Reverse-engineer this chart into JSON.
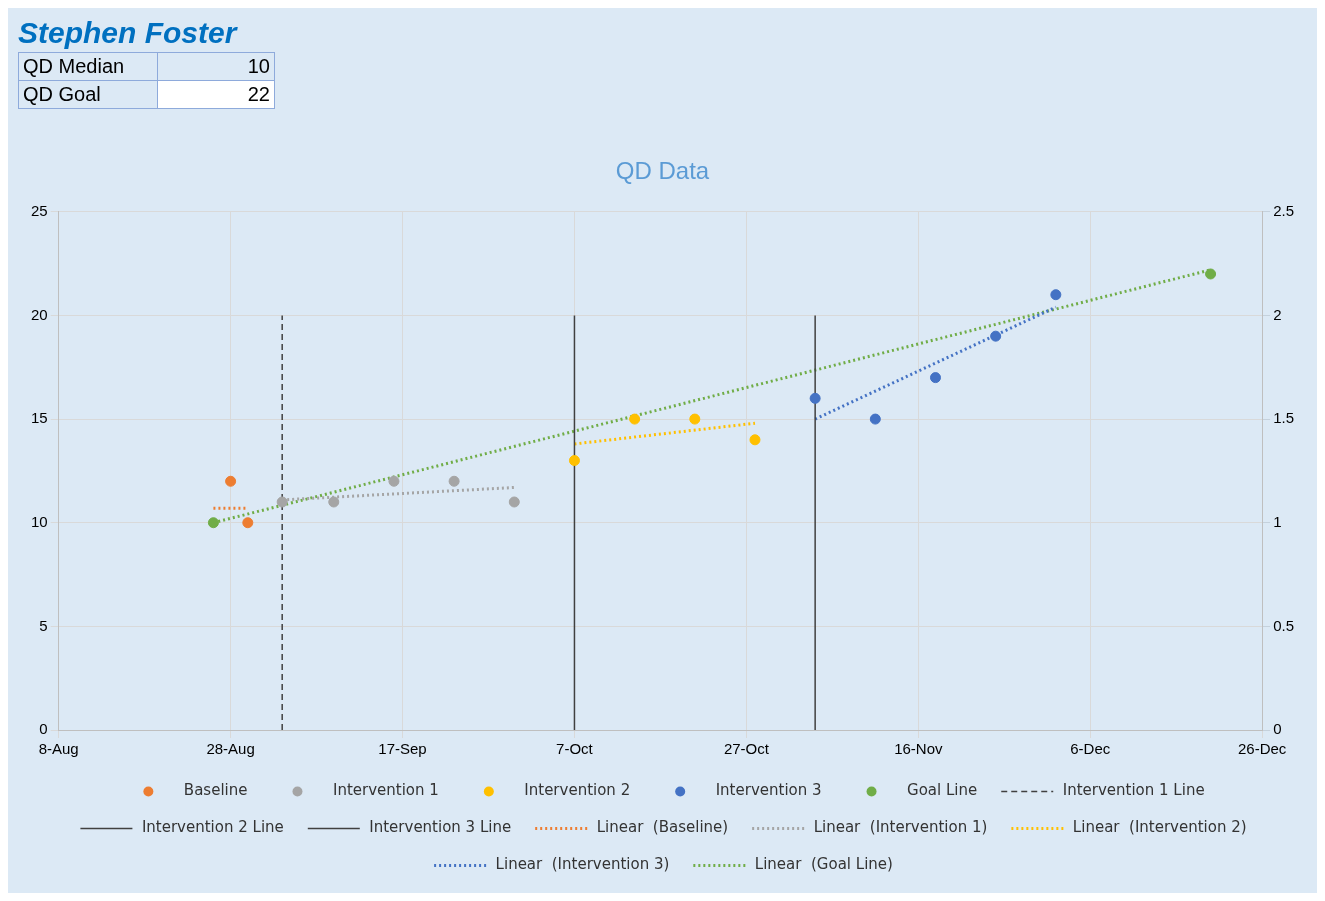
{
  "chart_data": {
    "type": "scatter",
    "title": "QD Data",
    "annotations": [
      "Stephen Foster",
      "QD Median",
      "10",
      "QD Goal",
      "22"
    ],
    "xlim": [
      "--08-08",
      "--12-26"
    ],
    "xticks": [
      {
        "value": "--08-08",
        "label": "8-Aug"
      },
      {
        "value": "--08-28",
        "label": "28-Aug"
      },
      {
        "value": "--09-17",
        "label": "17-Sep"
      },
      {
        "value": "--10-07",
        "label": "7-Oct"
      },
      {
        "value": "--10-27",
        "label": "27-Oct"
      },
      {
        "value": "--11-16",
        "label": "16-Nov"
      },
      {
        "value": "--12-06",
        "label": "6-Dec"
      },
      {
        "value": "--12-26",
        "label": "26-Dec"
      }
    ],
    "ylim": [
      0,
      25
    ],
    "yticks": [
      0,
      5,
      10,
      15,
      20,
      25
    ],
    "y2lim": [
      0,
      2.5
    ],
    "y2ticks": [
      0,
      0.5,
      1,
      1.5,
      2,
      2.5
    ],
    "grid": true,
    "legend": "bottom",
    "series": [
      {
        "name": "Baseline",
        "type": "scatter",
        "marker": "circle",
        "color": "#ed7d31",
        "x": [
          "--08-28",
          "--08-30"
        ],
        "values": [
          12,
          10
        ]
      },
      {
        "name": "Intervention 1",
        "type": "scatter",
        "marker": "circle",
        "color": "#a5a5a5",
        "x": [
          "--09-03",
          "--09-09",
          "--09-16",
          "--09-23",
          "--09-30"
        ],
        "values": [
          11,
          11,
          12,
          12,
          11
        ]
      },
      {
        "name": "Intervention 2",
        "type": "scatter",
        "marker": "circle",
        "color": "#ffc000",
        "x": [
          "--10-07",
          "--10-14",
          "--10-21",
          "--10-28"
        ],
        "values": [
          13,
          15,
          15,
          14
        ]
      },
      {
        "name": "Intervention 3",
        "type": "scatter",
        "marker": "circle",
        "color": "#4472c4",
        "x": [
          "--11-04",
          "--11-11",
          "--11-18",
          "--11-25",
          "--12-02"
        ],
        "values": [
          16,
          15,
          17,
          19,
          21
        ]
      },
      {
        "name": "Goal Line",
        "type": "scatter",
        "marker": "circle",
        "color": "#70ad47",
        "x": [
          "--08-26",
          "--12-20"
        ],
        "values": [
          10,
          22
        ]
      },
      {
        "name": "Intervention 1 Line",
        "type": "line",
        "axis": "y2",
        "marker": "none",
        "line_style": "dashed",
        "color": "#404040",
        "x": [
          "--09-03",
          "--09-03"
        ],
        "values": [
          0,
          2
        ]
      },
      {
        "name": "Intervention 2 Line",
        "type": "line",
        "axis": "y2",
        "marker": "none",
        "line_style": "solid",
        "color": "#404040",
        "x": [
          "--10-07",
          "--10-07"
        ],
        "values": [
          0,
          2
        ]
      },
      {
        "name": "Intervention 3 Line",
        "type": "line",
        "axis": "y2",
        "marker": "none",
        "line_style": "solid",
        "color": "#404040",
        "x": [
          "--11-04",
          "--11-04"
        ],
        "values": [
          0,
          2
        ]
      },
      {
        "name": "Linear  (Baseline)",
        "type": "line",
        "marker": "none",
        "line_style": "dotted",
        "color": "#ed7d31",
        "x": [
          "--08-26",
          "--08-30"
        ],
        "values": [
          10.7,
          10.7
        ]
      },
      {
        "name": "Linear  (Intervention 1)",
        "type": "line",
        "marker": "none",
        "line_style": "dotted",
        "color": "#a5a5a5",
        "x": [
          "--09-03",
          "--09-30"
        ],
        "values": [
          11.1,
          11.7
        ]
      },
      {
        "name": "Linear  (Intervention 2)",
        "type": "line",
        "marker": "none",
        "line_style": "dotted",
        "color": "#ffc000",
        "x": [
          "--10-07",
          "--10-28"
        ],
        "values": [
          13.8,
          14.8
        ]
      },
      {
        "name": "Linear  (Intervention 3)",
        "type": "line",
        "marker": "none",
        "line_style": "dotted",
        "color": "#4472c4",
        "x": [
          "--11-04",
          "--12-02"
        ],
        "values": [
          15,
          20.4
        ]
      },
      {
        "name": "Linear  (Goal Line)",
        "type": "line",
        "marker": "none",
        "line_style": "dotted",
        "color": "#70ad47",
        "x": [
          "--08-26",
          "--12-20"
        ],
        "values": [
          10,
          22.2
        ]
      }
    ]
  }
}
